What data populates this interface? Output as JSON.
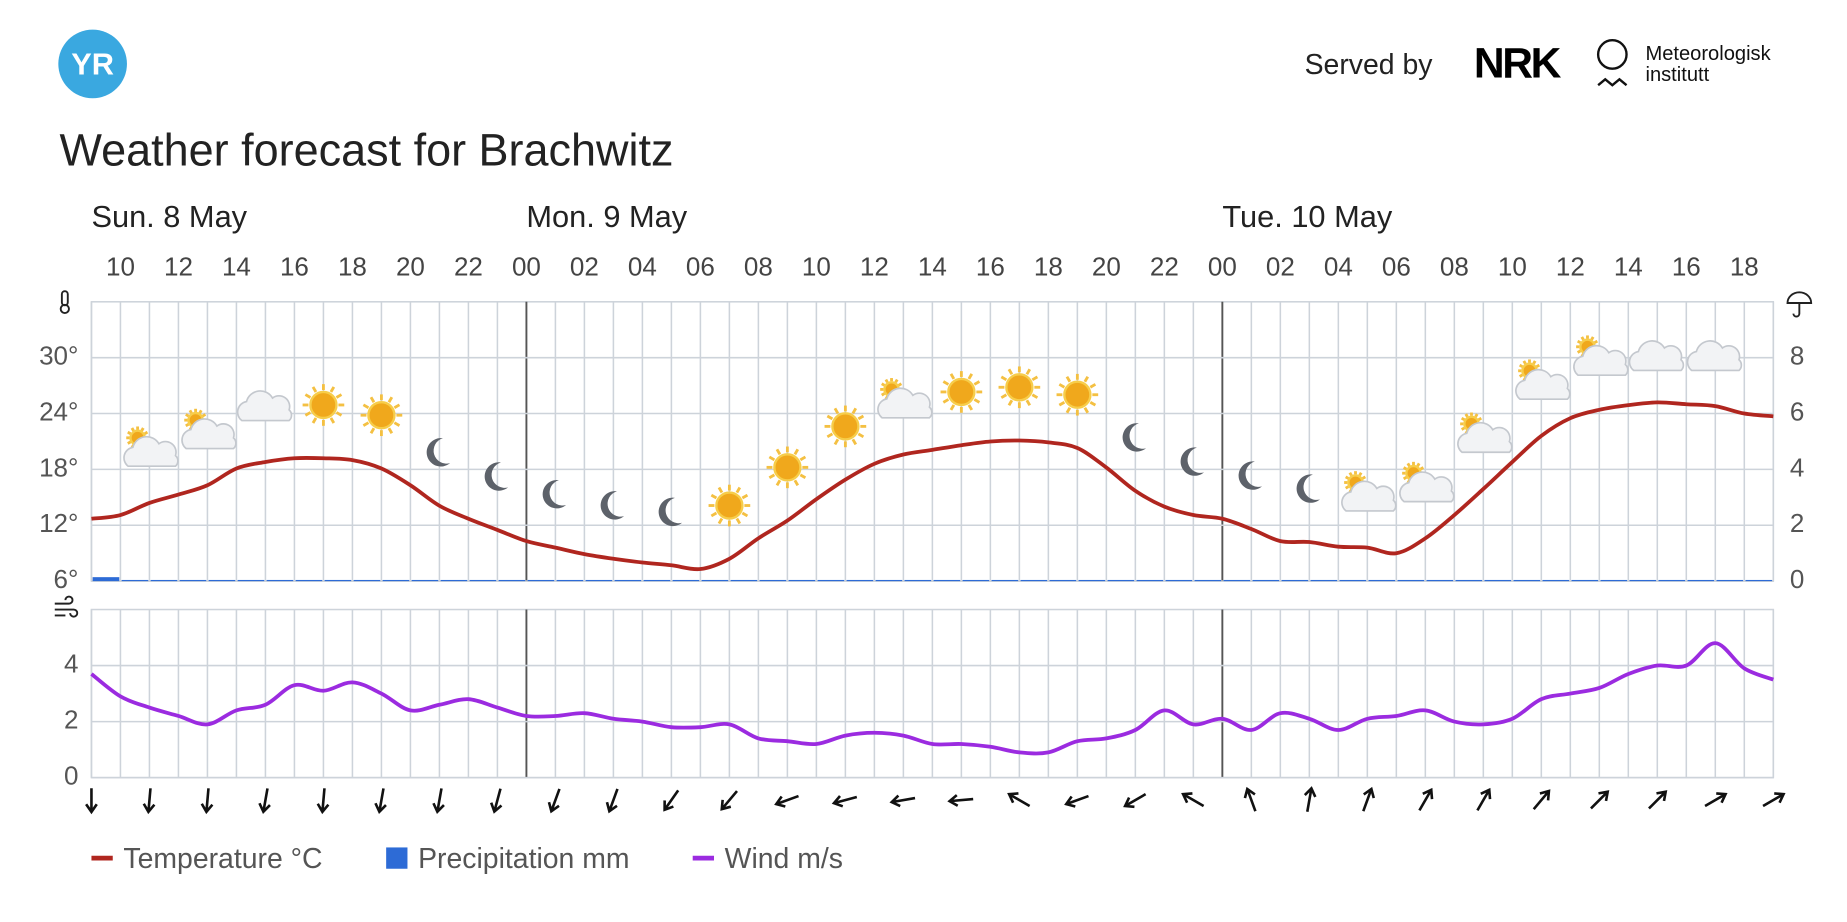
{
  "header": {
    "logo": "YR",
    "served_by": "Served by",
    "nrk": "NRK",
    "met_line1": "Meteorologisk",
    "met_line2": "institutt"
  },
  "chart_data": {
    "type": "line",
    "title": "Weather forecast for Brachwitz",
    "days": [
      {
        "label": "Sun. 8 May",
        "index": 0
      },
      {
        "label": "Mon. 9 May",
        "index": 15
      },
      {
        "label": "Tue. 10 May",
        "index": 39
      }
    ],
    "categories": [
      null,
      "10",
      null,
      "12",
      null,
      "14",
      null,
      "16",
      null,
      "18",
      null,
      "20",
      null,
      "22",
      null,
      "00",
      null,
      "02",
      null,
      "04",
      null,
      "06",
      null,
      "08",
      null,
      "10",
      null,
      "12",
      null,
      "14",
      null,
      "16",
      null,
      "18",
      null,
      "20",
      null,
      "22",
      null,
      "00",
      null,
      "02",
      null,
      "04",
      null,
      "06",
      null,
      "08",
      null,
      "10",
      null,
      "12",
      null,
      "14",
      null,
      "16",
      null,
      "18",
      null
    ],
    "ylim": [
      6,
      36
    ],
    "yticks": [
      {
        "value": 6,
        "label": "6°"
      },
      {
        "value": 12,
        "label": "12°"
      },
      {
        "value": 18,
        "label": "18°"
      },
      {
        "value": 24,
        "label": "24°"
      },
      {
        "value": 30,
        "label": "30°"
      }
    ],
    "y2lim": [
      0,
      10
    ],
    "y2ticks": [
      0,
      2,
      4,
      6,
      8
    ],
    "wind_panel": {
      "ylim": [
        0,
        6
      ],
      "yticks": [
        0,
        2,
        4
      ]
    },
    "grid": true,
    "series": [
      {
        "name": "Temperature °C",
        "color": "#b0261f",
        "axis": "y",
        "values": [
          12.7,
          13.1,
          14.4,
          15.3,
          16.3,
          18.1,
          18.8,
          19.2,
          19.2,
          19.0,
          18.1,
          16.3,
          14.1,
          12.7,
          11.5,
          10.3,
          9.6,
          8.9,
          8.4,
          8.0,
          7.7,
          7.3,
          8.4,
          10.6,
          12.5,
          14.8,
          16.9,
          18.6,
          19.6,
          20.1,
          20.6,
          21.0,
          21.1,
          20.9,
          20.3,
          18.2,
          15.7,
          14.0,
          13.1,
          12.7,
          11.6,
          10.3,
          10.2,
          9.7,
          9.6,
          9.0,
          10.6,
          13.1,
          15.9,
          18.8,
          21.6,
          23.5,
          24.4,
          24.9,
          25.2,
          25.0,
          24.8,
          24.0,
          23.7
        ]
      },
      {
        "name": "Precipitation mm",
        "color": "#2d6bd6",
        "axis": "y2",
        "values": [
          0.1,
          0,
          0,
          0,
          0,
          0,
          0,
          0,
          0,
          0,
          0,
          0,
          0,
          0,
          0,
          0,
          0,
          0,
          0,
          0,
          0,
          0,
          0,
          0,
          0,
          0,
          0,
          0,
          0,
          0,
          0,
          0,
          0,
          0,
          0,
          0,
          0,
          0,
          0,
          0,
          0,
          0,
          0,
          0,
          0,
          0,
          0,
          0,
          0,
          0,
          0,
          0,
          0,
          0,
          0,
          0,
          0,
          0,
          0
        ]
      },
      {
        "name": "Wind m/s",
        "color": "#9b2be0",
        "axis": "wind",
        "values": [
          3.7,
          2.9,
          2.5,
          2.2,
          1.9,
          2.4,
          2.6,
          3.3,
          3.1,
          3.4,
          3.0,
          2.4,
          2.6,
          2.8,
          2.5,
          2.2,
          2.2,
          2.3,
          2.1,
          2.0,
          1.8,
          1.8,
          1.9,
          1.4,
          1.3,
          1.2,
          1.5,
          1.6,
          1.5,
          1.2,
          1.2,
          1.1,
          0.9,
          0.9,
          1.3,
          1.4,
          1.7,
          2.4,
          1.9,
          2.1,
          1.7,
          2.3,
          2.1,
          1.7,
          2.1,
          2.2,
          2.4,
          2.0,
          1.9,
          2.1,
          2.8,
          3.0,
          3.2,
          3.7,
          4.0,
          4.0,
          4.8,
          3.9,
          3.5
        ]
      }
    ],
    "wind_direction": {
      "every": 2,
      "values": [
        180,
        185,
        185,
        190,
        185,
        190,
        190,
        195,
        200,
        200,
        215,
        220,
        250,
        255,
        260,
        265,
        300,
        250,
        240,
        300,
        340,
        10,
        20,
        30,
        30,
        40,
        45,
        45,
        60,
        60
      ]
    }
  }
}
